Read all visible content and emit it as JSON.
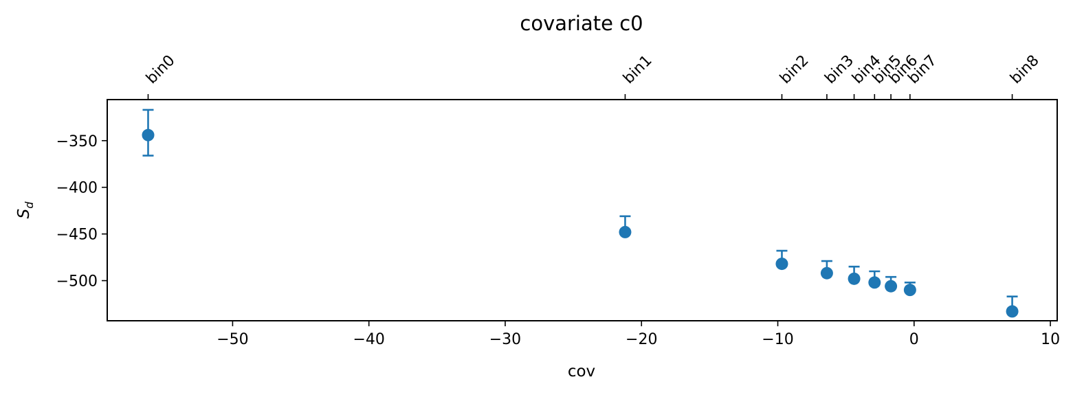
{
  "chart_data": {
    "type": "scatter",
    "title": "covariate c0",
    "xlabel": "cov",
    "ylabel": "S",
    "ylabel_subscript": "d",
    "xlim": [
      -59.2,
      10.5
    ],
    "ylim": [
      -543,
      -306
    ],
    "x_ticks": [
      -50,
      -40,
      -30,
      -20,
      -10,
      0,
      10
    ],
    "x_tick_labels": [
      "−50",
      "−40",
      "−30",
      "−20",
      "−10",
      "0",
      "10"
    ],
    "y_ticks": [
      -350,
      -400,
      -450,
      -500
    ],
    "y_tick_labels": [
      "−350",
      "−400",
      "−450",
      "−500"
    ],
    "top_axis": {
      "positions": [
        -56.2,
        -21.2,
        -9.7,
        -6.4,
        -4.4,
        -2.9,
        -1.7,
        -0.3,
        7.2
      ],
      "labels": [
        "bin0",
        "bin1",
        "bin2",
        "bin3",
        "bin4",
        "bin5",
        "bin6",
        "bin7",
        "bin8"
      ]
    },
    "grid": false,
    "color": "#1f77b4",
    "series": [
      {
        "x": [
          -56.2,
          -21.2,
          -9.7,
          -6.4,
          -4.4,
          -2.9,
          -1.7,
          -0.3,
          7.2
        ],
        "y": [
          -344,
          -448,
          -482,
          -492,
          -498,
          -502,
          -506,
          -510,
          -533
        ],
        "yerr_lower": [
          22,
          0,
          0,
          0,
          0,
          0,
          0,
          0,
          0
        ],
        "yerr_upper": [
          27,
          17,
          14,
          13,
          13,
          12,
          10,
          8,
          16
        ]
      }
    ]
  }
}
